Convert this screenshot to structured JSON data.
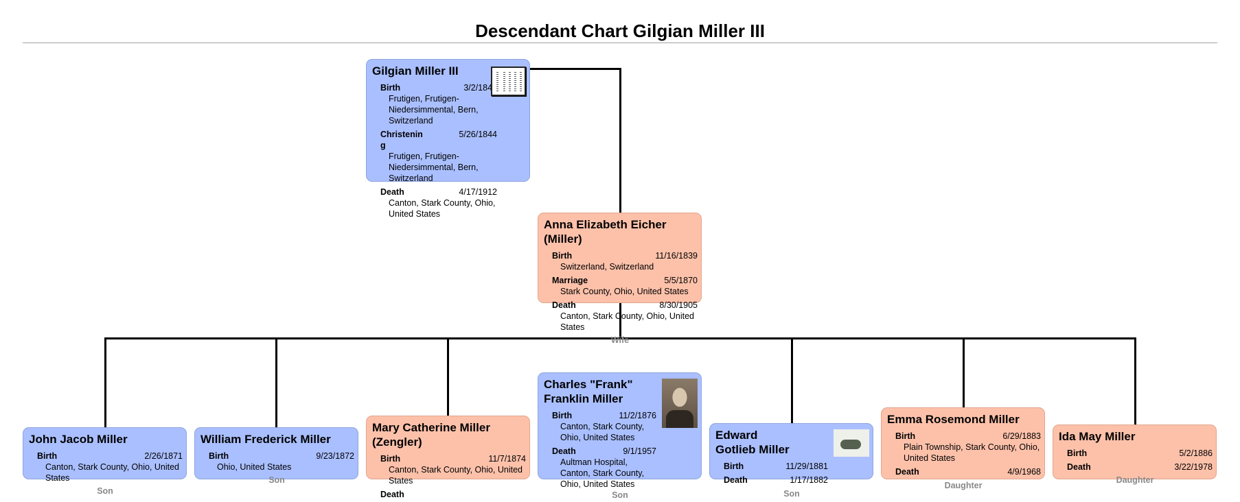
{
  "title": "Descendant Chart Gilgian Miller III",
  "colors": {
    "male": "#aabfff",
    "female": "#fdc1aa",
    "line": "#000000",
    "relation": "#888888"
  },
  "people": [
    {
      "id": "gilgian",
      "name": "Gilgian Miller III",
      "gender": "male",
      "photo": "document-thumbnail",
      "relation": "",
      "events": [
        {
          "type": "Birth",
          "date": "3/2/1844",
          "place": "Frutigen, Frutigen-Niedersimmental, Bern, Switzerland"
        },
        {
          "type": "Christening",
          "date": "5/26/1844",
          "place": "Frutigen, Frutigen-Niedersimmental, Bern, Switzerland"
        },
        {
          "type": "Death",
          "date": "4/17/1912",
          "place": "Canton, Stark County, Ohio, United States"
        }
      ]
    },
    {
      "id": "anna",
      "name": "Anna Elizabeth Eicher (Miller)",
      "gender": "female",
      "photo": "",
      "relation": "Wife",
      "events": [
        {
          "type": "Birth",
          "date": "11/16/1839",
          "place": "Switzerland, Switzerland"
        },
        {
          "type": "Marriage",
          "date": "5/5/1870",
          "place": "Stark County, Ohio, United States"
        },
        {
          "type": "Death",
          "date": "8/30/1905",
          "place": "Canton, Stark County, Ohio, United States"
        }
      ]
    },
    {
      "id": "john",
      "name": "John Jacob Miller",
      "gender": "male",
      "photo": "",
      "relation": "Son",
      "events": [
        {
          "type": "Birth",
          "date": "2/26/1871",
          "place": "Canton, Stark County, Ohio, United States"
        }
      ]
    },
    {
      "id": "william",
      "name": "William Frederick Miller",
      "gender": "male",
      "photo": "",
      "relation": "Son",
      "events": [
        {
          "type": "Birth",
          "date": "9/23/1872",
          "place": "Ohio, United States"
        }
      ]
    },
    {
      "id": "mary",
      "name": "Mary Catherine Miller (Zengler)",
      "gender": "female",
      "photo": "",
      "relation": "",
      "events": [
        {
          "type": "Birth",
          "date": "11/7/1874",
          "place": "Canton, Stark County, Ohio, United States"
        },
        {
          "type": "Death",
          "date": "",
          "place": ""
        }
      ]
    },
    {
      "id": "charles",
      "name": "Charles \"Frank\" Franklin Miller",
      "gender": "male",
      "photo": "portrait",
      "relation": "Son",
      "events": [
        {
          "type": "Birth",
          "date": "11/2/1876",
          "place": "Canton, Stark County, Ohio, United States"
        },
        {
          "type": "Death",
          "date": "9/1/1957",
          "place": "Aultman Hospital, Canton, Stark County, Ohio, United States"
        }
      ]
    },
    {
      "id": "edward",
      "name": "Edward Gotlieb Miller",
      "gender": "male",
      "photo": "plant-photo",
      "relation": "Son",
      "events": [
        {
          "type": "Birth",
          "date": "11/29/1881",
          "place": ""
        },
        {
          "type": "Death",
          "date": "1/17/1882",
          "place": ""
        }
      ]
    },
    {
      "id": "emma",
      "name": "Emma Rosemond Miller",
      "gender": "female",
      "photo": "",
      "relation": "Daughter",
      "events": [
        {
          "type": "Birth",
          "date": "6/29/1883",
          "place": "Plain Township, Stark County, Ohio, United States"
        },
        {
          "type": "Death",
          "date": "4/9/1968",
          "place": ""
        }
      ]
    },
    {
      "id": "ida",
      "name": "Ida May Miller",
      "gender": "female",
      "photo": "",
      "relation": "Daughter",
      "events": [
        {
          "type": "Birth",
          "date": "5/2/1886",
          "place": ""
        },
        {
          "type": "Death",
          "date": "3/22/1978",
          "place": ""
        }
      ]
    }
  ]
}
